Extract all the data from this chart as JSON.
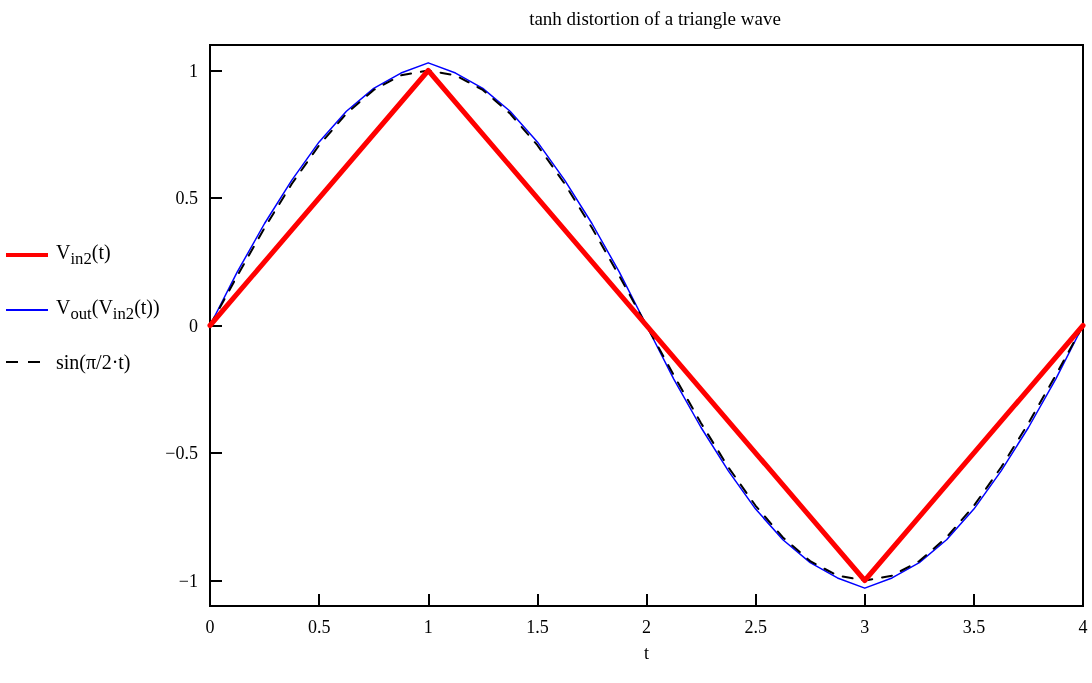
{
  "chart_data": {
    "type": "line",
    "title": "tanh distortion of a triangle wave",
    "xlabel": "t",
    "x": [
      0,
      0.125,
      0.25,
      0.375,
      0.5,
      0.625,
      0.75,
      0.875,
      1,
      1.125,
      1.25,
      1.375,
      1.5,
      1.625,
      1.75,
      1.875,
      2,
      2.125,
      2.25,
      2.375,
      2.5,
      2.625,
      2.75,
      2.875,
      3,
      3.125,
      3.25,
      3.375,
      3.5,
      3.625,
      3.75,
      3.875,
      4
    ],
    "series": [
      {
        "name": "V$_{in2}$(t)",
        "color": "#ff0000",
        "x": [
          0,
          1,
          3,
          4
        ],
        "values": [
          0,
          1,
          -1,
          0
        ],
        "line_style": "solid"
      },
      {
        "name": "V$_{out}$(V$_{in2}$(t))",
        "color": "#0000ff",
        "values": [
          0,
          0.21,
          0.4,
          0.57,
          0.72,
          0.84,
          0.93,
          0.99,
          1.03,
          0.99,
          0.93,
          0.84,
          0.72,
          0.57,
          0.4,
          0.21,
          0,
          -0.21,
          -0.4,
          -0.57,
          -0.72,
          -0.84,
          -0.93,
          -0.99,
          -1.03,
          -0.99,
          -0.93,
          -0.84,
          -0.72,
          -0.57,
          -0.4,
          -0.21,
          0
        ],
        "line_style": "solid"
      },
      {
        "name": "sin(π/2·t)",
        "color": "#000000",
        "values": [
          0,
          0.195,
          0.383,
          0.556,
          0.707,
          0.831,
          0.924,
          0.981,
          1,
          0.981,
          0.924,
          0.831,
          0.707,
          0.556,
          0.383,
          0.195,
          0,
          -0.195,
          -0.383,
          -0.556,
          -0.707,
          -0.831,
          -0.924,
          -0.981,
          -1,
          -0.981,
          -0.924,
          -0.831,
          -0.707,
          -0.556,
          -0.383,
          -0.195,
          0
        ],
        "line_style": "dashed"
      }
    ],
    "xlim": [
      0,
      4
    ],
    "xticks": [
      0,
      0.5,
      1,
      1.5,
      2,
      2.5,
      3,
      3.5,
      4
    ],
    "ylim": [
      -1.1,
      1.1
    ],
    "yticks": [
      {
        "value": -1,
        "label": "−1"
      },
      {
        "value": -0.5,
        "label": "−0.5"
      },
      0,
      0.5,
      1
    ],
    "grid": false,
    "legend": "left",
    "marker": "none"
  }
}
